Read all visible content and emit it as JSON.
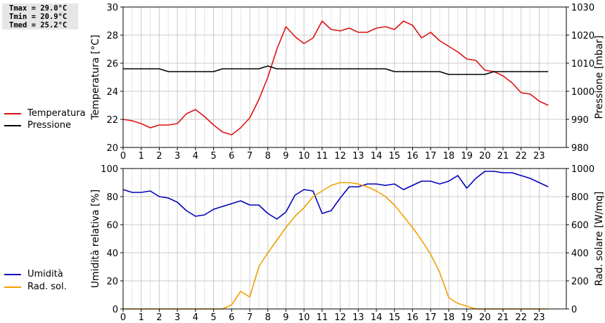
{
  "stats": {
    "tmax": "Tmax = 29.0°C",
    "tmin": "Tmin = 20.9°C",
    "tmed": "Tmed = 25.2°C"
  },
  "legend_top": [
    {
      "label": "Temperatura",
      "color": "#dd1111"
    },
    {
      "label": "Pressione",
      "color": "#000000"
    }
  ],
  "legend_bottom": [
    {
      "label": "Umidità",
      "color": "#0000bb"
    },
    {
      "label": "Rad. sol.",
      "color": "#f0a000"
    }
  ],
  "chart_data": [
    {
      "type": "line",
      "x_ticks": [
        "0",
        "1",
        "2",
        "3",
        "4",
        "5",
        "6",
        "7",
        "8",
        "9",
        "10",
        "11",
        "12",
        "13",
        "14",
        "15",
        "16",
        "17",
        "18",
        "19",
        "20",
        "21",
        "22",
        "23"
      ],
      "xlim": [
        0,
        24.5
      ],
      "ylabel": "Temperatura [°C]",
      "ylim": [
        20,
        30
      ],
      "y_ticks": [
        "20",
        "22",
        "24",
        "26",
        "28",
        "30"
      ],
      "y2label": "Pressione [mbar]",
      "y2lim": [
        980,
        1030
      ],
      "y2_ticks": [
        "980",
        "990",
        "1000",
        "1010",
        "1020",
        "1030"
      ],
      "grid": true,
      "series": [
        {
          "name": "Temperatura",
          "axis": "left",
          "color": "#dd1111",
          "x": [
            0,
            0.5,
            1,
            1.5,
            2,
            2.5,
            3,
            3.5,
            4,
            4.5,
            5,
            5.5,
            6,
            6.5,
            7,
            7.5,
            8,
            8.5,
            9,
            9.5,
            10,
            10.5,
            11,
            11.5,
            12,
            12.5,
            13,
            13.5,
            14,
            14.5,
            15,
            15.5,
            16,
            16.5,
            17,
            17.5,
            18,
            18.5,
            19,
            19.5,
            20,
            20.5,
            21,
            21.5,
            22,
            22.5,
            23,
            23.5
          ],
          "y": [
            22.0,
            21.9,
            21.7,
            21.4,
            21.6,
            21.6,
            21.7,
            22.4,
            22.7,
            22.2,
            21.6,
            21.1,
            20.9,
            21.4,
            22.1,
            23.4,
            25.0,
            27.0,
            28.6,
            27.9,
            27.4,
            27.8,
            29.0,
            28.4,
            28.3,
            28.5,
            28.2,
            28.2,
            28.5,
            28.6,
            28.4,
            29.0,
            28.7,
            27.8,
            28.2,
            27.6,
            27.2,
            26.8,
            26.3,
            26.2,
            25.5,
            25.4,
            25.1,
            24.6,
            23.9,
            23.8,
            23.3,
            23.0
          ]
        },
        {
          "name": "Pressione",
          "axis": "right",
          "color": "#000000",
          "x": [
            0,
            0.5,
            1,
            1.5,
            2,
            2.5,
            3,
            3.5,
            4,
            4.5,
            5,
            5.5,
            6,
            6.5,
            7,
            7.5,
            8,
            8.5,
            9,
            9.5,
            10,
            10.5,
            11,
            11.5,
            12,
            12.5,
            13,
            13.5,
            14,
            14.5,
            15,
            15.5,
            16,
            16.5,
            17,
            17.5,
            18,
            18.5,
            19,
            19.5,
            20,
            20.5,
            21,
            21.5,
            22,
            22.5,
            23,
            23.5
          ],
          "y": [
            1008,
            1008,
            1008,
            1008,
            1008,
            1007,
            1007,
            1007,
            1007,
            1007,
            1007,
            1008,
            1008,
            1008,
            1008,
            1008,
            1009,
            1008,
            1008,
            1008,
            1008,
            1008,
            1008,
            1008,
            1008,
            1008,
            1008,
            1008,
            1008,
            1008,
            1007,
            1007,
            1007,
            1007,
            1007,
            1007,
            1006,
            1006,
            1006,
            1006,
            1006,
            1007,
            1007,
            1007,
            1007,
            1007,
            1007,
            1007
          ]
        }
      ]
    },
    {
      "type": "line",
      "x_ticks": [
        "0",
        "1",
        "2",
        "3",
        "4",
        "5",
        "6",
        "7",
        "8",
        "9",
        "10",
        "11",
        "12",
        "13",
        "14",
        "15",
        "16",
        "17",
        "18",
        "19",
        "20",
        "21",
        "22",
        "23"
      ],
      "xlim": [
        0,
        24.5
      ],
      "ylabel": "Umidità relativa [%]",
      "ylim": [
        0,
        100
      ],
      "y_ticks": [
        "0",
        "20",
        "40",
        "60",
        "80",
        "100"
      ],
      "y2label": "Rad. solare [W/mq]",
      "y2lim": [
        0,
        1000
      ],
      "y2_ticks": [
        "0",
        "200",
        "400",
        "600",
        "800",
        "1000"
      ],
      "grid": true,
      "series": [
        {
          "name": "Umidità",
          "axis": "left",
          "color": "#0000bb",
          "x": [
            0,
            0.5,
            1,
            1.5,
            2,
            2.5,
            3,
            3.5,
            4,
            4.5,
            5,
            5.5,
            6,
            6.5,
            7,
            7.5,
            8,
            8.5,
            9,
            9.5,
            10,
            10.5,
            11,
            11.5,
            12,
            12.5,
            13,
            13.5,
            14,
            14.5,
            15,
            15.5,
            16,
            16.5,
            17,
            17.5,
            18,
            18.5,
            19,
            19.5,
            20,
            20.5,
            21,
            21.5,
            22,
            22.5,
            23,
            23.5
          ],
          "y": [
            85,
            83,
            83,
            84,
            80,
            79,
            76,
            70,
            66,
            67,
            71,
            73,
            75,
            77,
            74,
            74,
            68,
            64,
            69,
            81,
            85,
            84,
            68,
            70,
            79,
            87,
            87,
            89,
            89,
            88,
            89,
            85,
            88,
            91,
            91,
            89,
            91,
            95,
            86,
            93,
            98,
            98,
            97,
            97,
            95,
            93,
            90,
            87
          ]
        },
        {
          "name": "Rad. sol.",
          "axis": "right",
          "color": "#f0a000",
          "x": [
            0,
            0.5,
            1,
            1.5,
            2,
            2.5,
            3,
            3.5,
            4,
            4.5,
            5,
            5.5,
            6,
            6.5,
            7,
            7.5,
            8,
            8.5,
            9,
            9.5,
            10,
            10.5,
            11,
            11.5,
            12,
            12.5,
            13,
            13.5,
            14,
            14.5,
            15,
            15.5,
            16,
            16.5,
            17,
            17.5,
            18,
            18.5,
            19,
            19.5,
            20,
            20.5,
            21,
            21.5,
            22,
            22.5,
            23,
            23.5
          ],
          "y": [
            0,
            0,
            0,
            0,
            0,
            0,
            0,
            0,
            0,
            0,
            0,
            0,
            30,
            125,
            85,
            300,
            400,
            490,
            580,
            660,
            720,
            800,
            840,
            880,
            900,
            900,
            890,
            870,
            840,
            800,
            740,
            660,
            580,
            490,
            390,
            260,
            80,
            40,
            20,
            0,
            0,
            0,
            0,
            0,
            0,
            0,
            0,
            0
          ]
        }
      ]
    }
  ]
}
